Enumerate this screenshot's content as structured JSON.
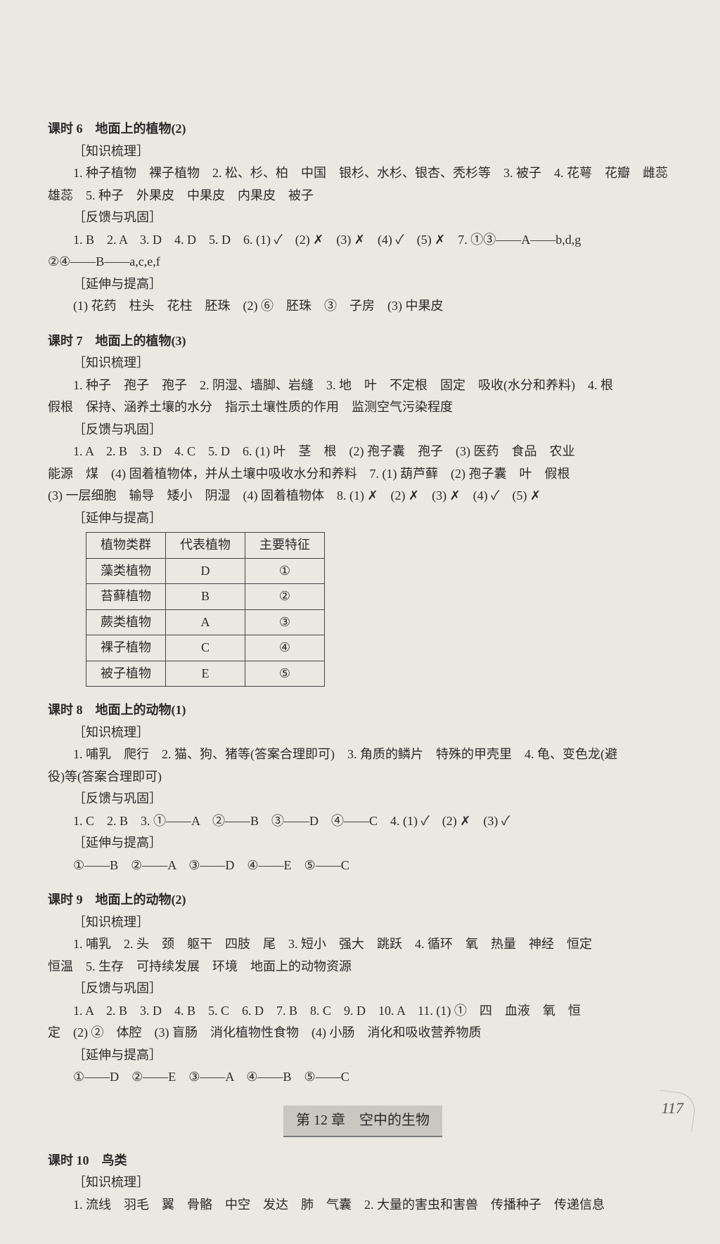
{
  "lesson6": {
    "title": "课时 6　地面上的植物(2)",
    "h1": "［知识梳理］",
    "l1": "1. 种子植物　裸子植物　2. 松、杉、柏　中国　银杉、水杉、银杏、秃杉等　3. 被子　4. 花萼　花瓣　雌蕊",
    "l2": "雄蕊　5. 种子　外果皮　中果皮　内果皮　被子",
    "h2": "［反馈与巩固］",
    "l3": "1. B　2. A　3. D　4. D　5. D　6. (1) ✓　(2) ✗　(3) ✗　(4) ✓　(5) ✗　7. ①③——A——b,d,g",
    "l4": "②④——B——a,c,e,f",
    "h3": "［延伸与提高］",
    "l5": "(1) 花药　柱头　花柱　胚珠　(2) ⑥　胚珠　③　子房　(3) 中果皮"
  },
  "lesson7": {
    "title": "课时 7　地面上的植物(3)",
    "h1": "［知识梳理］",
    "l1": "1. 种子　孢子　孢子　2. 阴湿、墙脚、岩缝　3. 地　叶　不定根　固定　吸收(水分和养料)　4. 根",
    "l2": "假根　保持、涵养土壤的水分　指示土壤性质的作用　监测空气污染程度",
    "h2": "［反馈与巩固］",
    "l3": "1. A　2. B　3. D　4. C　5. D　6. (1) 叶　茎　根　(2) 孢子囊　孢子　(3) 医药　食品　农业",
    "l4": "能源　煤　(4) 固着植物体，并从土壤中吸收水分和养料　7. (1) 葫芦藓　(2) 孢子囊　叶　假根",
    "l5": "(3) 一层细胞　输导　矮小　阴湿　(4) 固着植物体　8. (1) ✗　(2) ✗　(3) ✗　(4) ✓　(5) ✗",
    "h3": "［延伸与提高］"
  },
  "table": {
    "columns": [
      "植物类群",
      "代表植物",
      "主要特征"
    ],
    "rows": [
      [
        "藻类植物",
        "D",
        "①"
      ],
      [
        "苔藓植物",
        "B",
        "②"
      ],
      [
        "蕨类植物",
        "A",
        "③"
      ],
      [
        "裸子植物",
        "C",
        "④"
      ],
      [
        "被子植物",
        "E",
        "⑤"
      ]
    ]
  },
  "lesson8": {
    "title": "课时 8　地面上的动物(1)",
    "h1": "［知识梳理］",
    "l1": "1. 哺乳　爬行　2. 猫、狗、猪等(答案合理即可)　3. 角质的鳞片　特殊的甲壳里　4. 龟、变色龙(避",
    "l2": "役)等(答案合理即可)",
    "h2": "［反馈与巩固］",
    "l3": "1. C　2. B　3. ①——A　②——B　③——D　④——C　4. (1) ✓　(2) ✗　(3) ✓",
    "h3": "［延伸与提高］",
    "l4": "①——B　②——A　③——D　④——E　⑤——C"
  },
  "lesson9": {
    "title": "课时 9　地面上的动物(2)",
    "h1": "［知识梳理］",
    "l1": "1. 哺乳　2. 头　颈　躯干　四肢　尾　3. 短小　强大　跳跃　4. 循环　氧　热量　神经　恒定",
    "l2": "恒温　5. 生存　可持续发展　环境　地面上的动物资源",
    "h2": "［反馈与巩固］",
    "l3": "1. A　2. B　3. D　4. B　5. C　6. D　7. B　8. C　9. D　10. A　11. (1) ①　四　血液　氧　恒",
    "l4": "定　(2) ②　体腔　(3) 盲肠　消化植物性食物　(4) 小肠　消化和吸收营养物质",
    "h3": "［延伸与提高］",
    "l5": "①——D　②——E　③——A　④——B　⑤——C"
  },
  "chapter": "第 12 章　空中的生物",
  "lesson10": {
    "title": "课时 10　鸟类",
    "h1": "［知识梳理］",
    "l1": "1. 流线　羽毛　翼　骨骼　中空　发达　肺　气囊　2. 大量的害虫和害兽　传播种子　传递信息"
  },
  "pageNumber": "117"
}
